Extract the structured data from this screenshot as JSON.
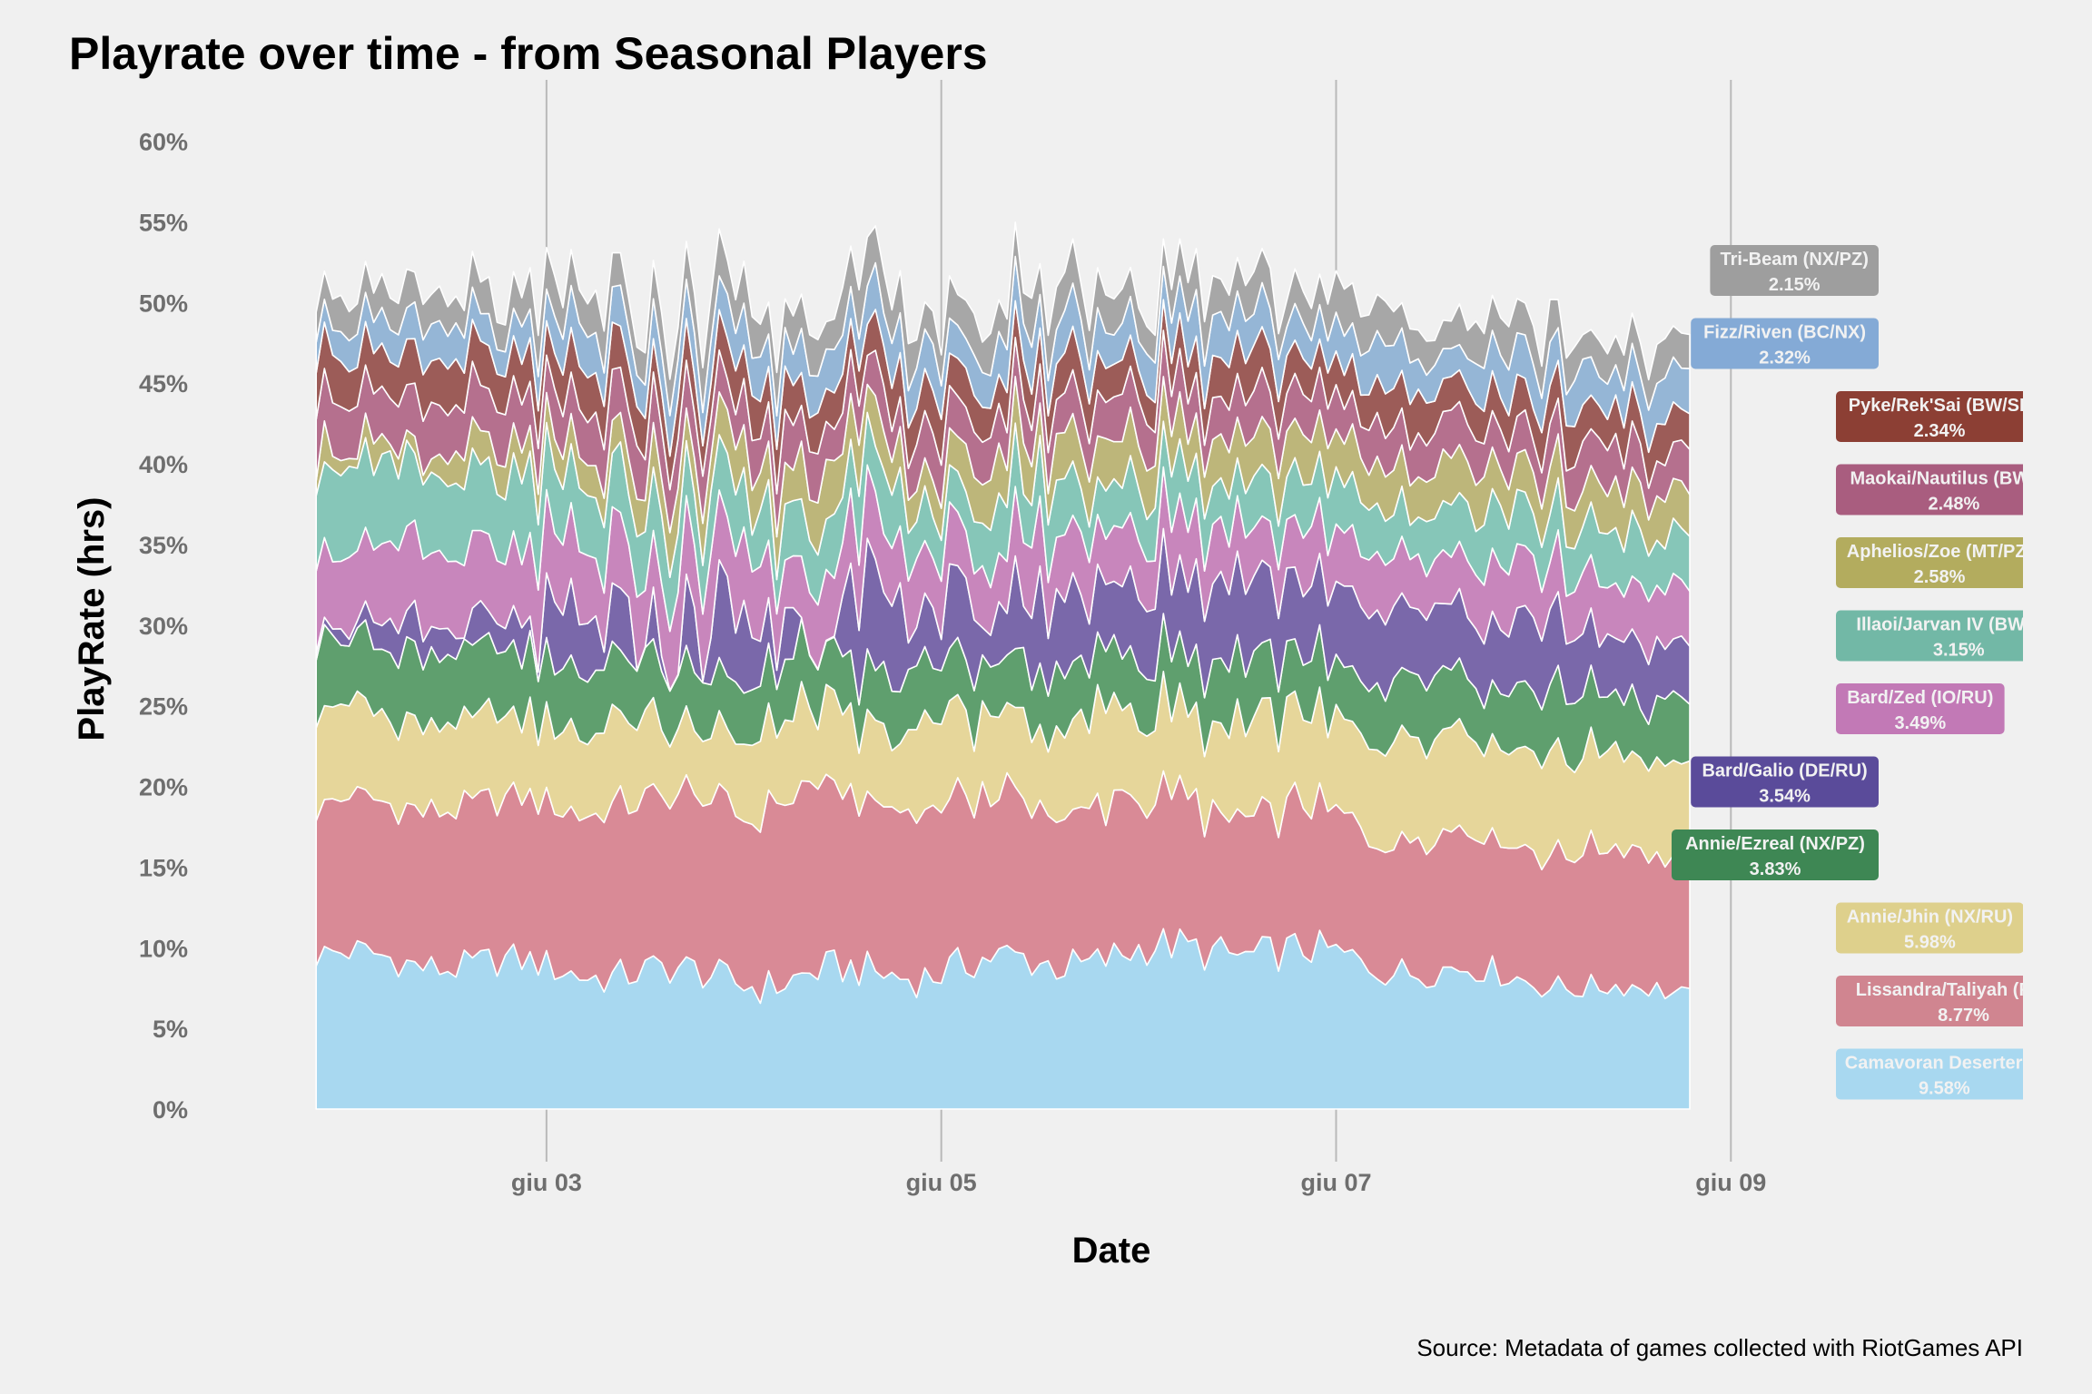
{
  "title": "Playrate over time - from Seasonal Players",
  "caption": "Source: Metadata of games collected with RiotGames API",
  "chart_data": {
    "type": "area",
    "stacked": true,
    "xlabel": "Date",
    "ylabel": "PlayRate (hrs)",
    "x_start": "2020-06-01T20:00",
    "x_end": "2020-06-08T19:00",
    "x_step_hours": 1,
    "x_ticks": [
      {
        "date": "2020-06-03",
        "label": "giu 03"
      },
      {
        "date": "2020-06-05",
        "label": "giu 05"
      },
      {
        "date": "2020-06-07",
        "label": "giu 07"
      },
      {
        "date": "2020-06-09",
        "label": "giu 09"
      }
    ],
    "x_range": [
      "2020-06-01T16:00",
      "2020-06-09T12:00"
    ],
    "y_ticks": [
      0,
      5,
      10,
      15,
      20,
      25,
      30,
      35,
      40,
      45,
      50,
      55,
      60
    ],
    "y_tick_labels": [
      "0%",
      "5%",
      "10%",
      "15%",
      "20%",
      "25%",
      "30%",
      "35%",
      "40%",
      "45%",
      "50%",
      "55%",
      "60%"
    ],
    "ylim": [
      0,
      62
    ],
    "grid": "vertical major only",
    "legend": "end-of-series labels, right side",
    "series": [
      {
        "name": "Camavoran Deserters (",
        "label_value": "9.58%",
        "color": "#a8d8f0",
        "label_color": "#a8d8f0",
        "anchor": [
          9.5,
          1.0,
          8.0,
          1.2,
          10,
          1.3,
          7,
          0.7
        ]
      },
      {
        "name": "Lissandra/Taliyah (FR/SI)",
        "label_value": "8.77%",
        "color": "#d98a96",
        "label_color": "#d08590",
        "anchor": [
          9.3,
          -0.5,
          11.0,
          0.9,
          8.7,
          0.8,
          8.3,
          0.4
        ]
      },
      {
        "name": "Annie/Jhin (NX/RU)",
        "label_value": "5.98%",
        "color": "#e6d69a",
        "label_color": "#ded08c",
        "anchor": [
          5.8,
          0.3,
          4.5,
          1.2,
          5.7,
          1.1,
          6.0,
          0.4
        ]
      },
      {
        "name": "Annie/Ezreal (NX/PZ)",
        "label_value": "3.83%",
        "color": "#5f9f6e",
        "label_color": "#3e8754",
        "anchor": [
          4.6,
          -0.8,
          3.4,
          0.6,
          3.6,
          0.4,
          3.8,
          0.7
        ]
      },
      {
        "name": "Bard/Galio (DE/RU)",
        "label_value": "3.54%",
        "color": "#7a68aa",
        "label_color": "#5a4b9a",
        "anchor": [
          0.8,
          0.3,
          2.8,
          3.8,
          5.0,
          0.4,
          3.5,
          0.6
        ]
      },
      {
        "name": "Bard/Zed (IO/RU)",
        "label_value": "3.49%",
        "color": "#c886bc",
        "label_color": "#c279b6",
        "anchor": [
          4.8,
          0.5,
          3.9,
          1.0,
          3.3,
          0.4,
          3.5,
          0.7
        ]
      },
      {
        "name": "Illaoi/Jarvan IV (BW/DE)",
        "label_value": "3.15%",
        "color": "#86c6b8",
        "label_color": "#72b8a6",
        "anchor": [
          5.2,
          0.6,
          3.3,
          0.9,
          2.9,
          0.5,
          3.1,
          0.8
        ]
      },
      {
        "name": "Aphelios/Zoe (MT/PZ)",
        "label_value": "2.58%",
        "color": "#bdb67a",
        "label_color": "#b3ac5e",
        "anchor": [
          1.0,
          -1.2,
          2.6,
          1.0,
          2.7,
          0.4,
          2.6,
          0.5
        ]
      },
      {
        "name": "Maokai/Nautilus (BW/SI)",
        "label_value": "2.48%",
        "color": "#b5708e",
        "label_color": "#a95d7f",
        "anchor": [
          3.3,
          0.4,
          2.5,
          0.6,
          2.5,
          0.4,
          2.5,
          0.5
        ]
      },
      {
        "name": "Pyke/Rek'Sai (BW/SI)",
        "label_value": "2.34%",
        "color": "#9c5c58",
        "label_color": "#8c3f34",
        "anchor": [
          2.7,
          0.3,
          2.3,
          0.4,
          2.3,
          0.4,
          2.3,
          0.4
        ]
      },
      {
        "name": "Fizz/Riven (BC/NX)",
        "label_value": "2.32%",
        "color": "#95b6d6",
        "label_color": "#84aad6",
        "anchor": [
          1.8,
          0.3,
          2.4,
          0.5,
          2.3,
          0.5,
          2.3,
          0.6
        ]
      },
      {
        "name": "Tri-Beam (NX/PZ)",
        "label_value": "2.15%",
        "color": "#a7a7a7",
        "label_color": "#9e9e9e",
        "anchor": [
          2.0,
          0.3,
          2.3,
          0.6,
          2.2,
          0.6,
          2.1,
          0.5
        ]
      }
    ]
  },
  "labels_left_column": [
    "Tri-Beam (NX/PZ)",
    "Fizz/Riven (BC/NX)",
    "Bard/Galio (DE/RU)",
    "Annie/Ezreal (NX/PZ)"
  ],
  "labels_right_column": [
    "Pyke/Rek'Sai (BW/SI)",
    "Maokai/Nautilus (BW/SI)",
    "Aphelios/Zoe (MT/PZ)",
    "Illaoi/Jarvan IV (BW/DE)",
    "Bard/Zed (IO/RU)",
    "Annie/Jhin (NX/RU)",
    "Lissandra/Taliyah (FR/SI)",
    "Camavoran Deserters ("
  ]
}
